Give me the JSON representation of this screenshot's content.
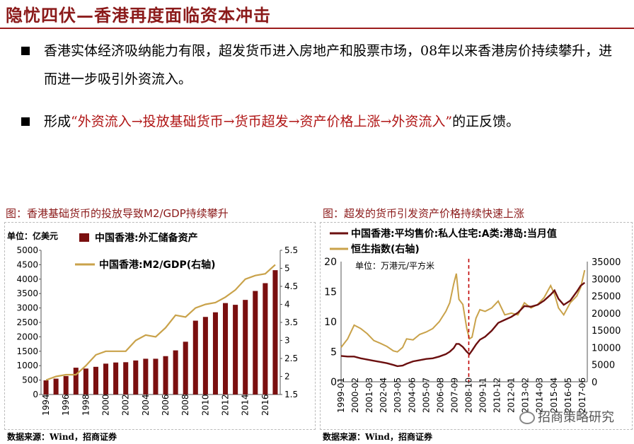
{
  "header": {
    "title": "隐忧四伏—香港再度面临资本冲击"
  },
  "bullets": [
    {
      "text": "香港实体经济吸纳能力有限，超发货币进入房地产和股票市场，08年以来香港房价持续攀升，进而进一步吸引外资流入。"
    },
    {
      "prefix": "形成",
      "highlight": "“外资流入→投放基础货币→货币超发→资产价格上涨→外资流入”",
      "suffix": "的正反馈。"
    }
  ],
  "left_panel": {
    "caption": "图：香港基础货币的投放导致M2/GDP持续攀升",
    "source": "数据来源：Wind，招商证券"
  },
  "right_panel": {
    "caption": "图：超发的货币引发资产价格持续快速上涨",
    "source": "数据来源：Wind，招商证券"
  },
  "watermark": "招商策略研究",
  "colors": {
    "brand": "#8b1a1a",
    "bar": "#7a0f0f",
    "line_gold": "#c9a24a",
    "line_dark": "#6b0f0f"
  },
  "chart_data": [
    {
      "type": "bar",
      "unit_label": "单位：亿美元",
      "legend": [
        {
          "label": "中国香港:外汇储备资产"
        },
        {
          "label": "中国香港:M2/GDP(右轴)"
        }
      ],
      "categories": [
        1994,
        1995,
        1996,
        1997,
        1998,
        1999,
        2000,
        2001,
        2002,
        2003,
        2004,
        2005,
        2006,
        2007,
        2008,
        2009,
        2010,
        2011,
        2012,
        2013,
        2014,
        2015,
        2016,
        2017
      ],
      "x_tick_labels": [
        "1994",
        "1996",
        "1998",
        "2000",
        "2002",
        "2004",
        "2006",
        "2008",
        "2010",
        "2012",
        "2014",
        "2016"
      ],
      "series": [
        {
          "name": "中国香港:外汇储备资产",
          "axis": "left",
          "values": [
            490,
            550,
            640,
            930,
            900,
            960,
            1070,
            1110,
            1120,
            1180,
            1240,
            1240,
            1330,
            1530,
            1830,
            2560,
            2690,
            2850,
            3170,
            3110,
            3280,
            3590,
            3860,
            4310
          ]
        },
        {
          "name": "中国香港:M2/GDP(右轴)",
          "axis": "right",
          "values": [
            1.9,
            2.0,
            2.05,
            2.05,
            2.3,
            2.6,
            2.7,
            2.7,
            2.7,
            3.0,
            3.15,
            3.1,
            3.35,
            3.7,
            3.65,
            3.9,
            4.0,
            4.05,
            4.2,
            4.4,
            4.7,
            4.8,
            4.85,
            5.1
          ]
        }
      ],
      "y_left": {
        "min": 0,
        "max": 5000,
        "ticks": [
          0,
          500,
          1000,
          1500,
          2000,
          2500,
          3000,
          3500,
          4000,
          4500,
          5000
        ]
      },
      "y_right": {
        "min": 1.5,
        "max": 5.5,
        "ticks": [
          "1.5",
          "2",
          "2.5",
          "3",
          "3.5",
          "4",
          "4.5",
          "5",
          "5.5"
        ]
      }
    },
    {
      "type": "line",
      "unit_label": "单位：万港元/平方米",
      "legend": [
        {
          "label": "中国香港:平均售价:私人住宅:A类:港岛:当月值"
        },
        {
          "label": "恒生指数(右轴)"
        }
      ],
      "x_tick_labels": [
        "1999-01",
        "2000-02",
        "2001-03",
        "2002-04",
        "2003-05",
        "2004-06",
        "2005-07",
        "2006-08",
        "2007-09",
        "2008-10",
        "2009-11",
        "2010-12",
        "2012-01",
        "2013-02",
        "2014-03",
        "2015-04",
        "2016-05",
        "2017-06"
      ],
      "x": [
        1999.0,
        1999.5,
        2000.0,
        2000.5,
        2001.0,
        2001.5,
        2002.0,
        2002.5,
        2003.0,
        2003.3,
        2003.7,
        2004.0,
        2004.5,
        2005.0,
        2005.5,
        2006.0,
        2006.5,
        2007.0,
        2007.3,
        2007.6,
        2007.8,
        2008.0,
        2008.3,
        2008.6,
        2008.8,
        2009.0,
        2009.3,
        2009.6,
        2010.0,
        2010.5,
        2011.0,
        2011.5,
        2012.0,
        2012.5,
        2013.0,
        2013.5,
        2014.0,
        2014.5,
        2015.0,
        2015.3,
        2015.6,
        2016.0,
        2016.5,
        2017.0,
        2017.3,
        2017.6
      ],
      "series": [
        {
          "name": "中国香港:平均售价:私人住宅:A类:港岛:当月值",
          "axis": "left",
          "values": [
            4.3,
            4.2,
            4.2,
            3.9,
            3.7,
            3.5,
            3.3,
            3.1,
            2.8,
            2.6,
            2.7,
            3.0,
            3.4,
            3.6,
            3.8,
            3.9,
            4.2,
            4.6,
            5.0,
            5.6,
            6.3,
            6.3,
            5.8,
            5.0,
            4.6,
            5.2,
            6.2,
            7.0,
            7.5,
            8.5,
            9.8,
            10.3,
            10.8,
            11.5,
            12.6,
            12.5,
            12.8,
            13.5,
            14.5,
            15.2,
            13.8,
            12.8,
            13.5,
            15.0,
            16.0,
            16.5
          ]
        },
        {
          "name": "恒生指数(右轴)",
          "axis": "right",
          "values": [
            10000,
            12500,
            16500,
            15500,
            14000,
            12000,
            11200,
            10300,
            9000,
            8700,
            10000,
            12500,
            12200,
            13800,
            14500,
            15500,
            17500,
            20500,
            23000,
            28500,
            31500,
            24000,
            22500,
            15500,
            12500,
            13000,
            18500,
            21000,
            20500,
            21500,
            23500,
            19500,
            20000,
            19500,
            23000,
            21500,
            22500,
            24500,
            28000,
            25500,
            21500,
            19500,
            23000,
            25000,
            27500,
            32500
          ]
        }
      ],
      "marker_x": 2008.75,
      "y_left": {
        "min": 0,
        "max": 20,
        "ticks": [
          "0",
          "5",
          "10",
          "15",
          "20"
        ]
      },
      "y_right": {
        "min": 0,
        "max": 35000,
        "ticks": [
          "0",
          "5000",
          "10000",
          "15000",
          "20000",
          "25000",
          "30000",
          "35000"
        ]
      }
    }
  ]
}
